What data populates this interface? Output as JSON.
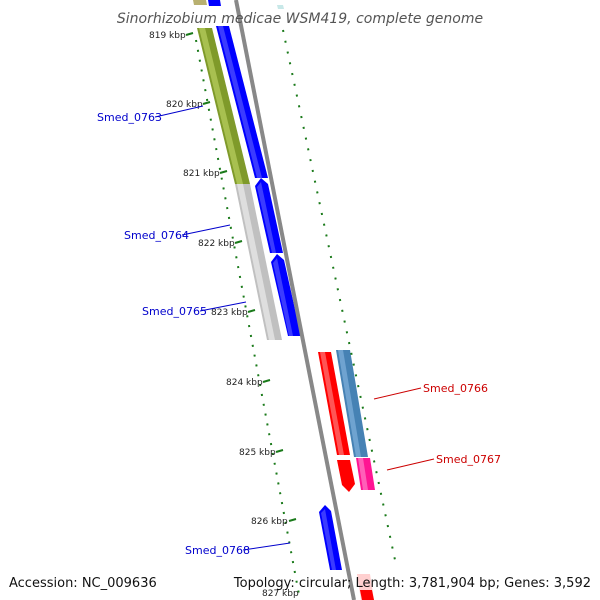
{
  "title": "Sinorhizobium medicae WSM419, complete genome",
  "ticks": [
    {
      "label": "819 kbp"
    },
    {
      "label": "820 kbp"
    },
    {
      "label": "821 kbp"
    },
    {
      "label": "822 kbp"
    },
    {
      "label": "823 kbp"
    },
    {
      "label": "824 kbp"
    },
    {
      "label": "825 kbp"
    },
    {
      "label": "826 kbp"
    },
    {
      "label": "827 kbp"
    }
  ],
  "genes": [
    {
      "name": "Smed_0763",
      "color": "#0000cc"
    },
    {
      "name": "Smed_0764",
      "color": "#0000cc"
    },
    {
      "name": "Smed_0765",
      "color": "#0000cc"
    },
    {
      "name": "Smed_0766",
      "color": "#cc0000"
    },
    {
      "name": "Smed_0767",
      "color": "#cc0000"
    },
    {
      "name": "Smed_0768",
      "color": "#0000cc"
    }
  ],
  "colors": {
    "forward_cds": "#0000ff",
    "reverse_cds": "#ff0000",
    "backbone": "#888888",
    "gc_track": "#1a7a1a",
    "olive_feature": "#7f9a2a",
    "gray_feature": "#c0c0c0",
    "steelblue_feature": "#4682b4",
    "magenta_feature": "#ff1493"
  },
  "footer": {
    "accession": "Accession: NC_009636",
    "topology": "Topology: circular; Length: 3,781,904 bp; Genes: 3,592"
  }
}
